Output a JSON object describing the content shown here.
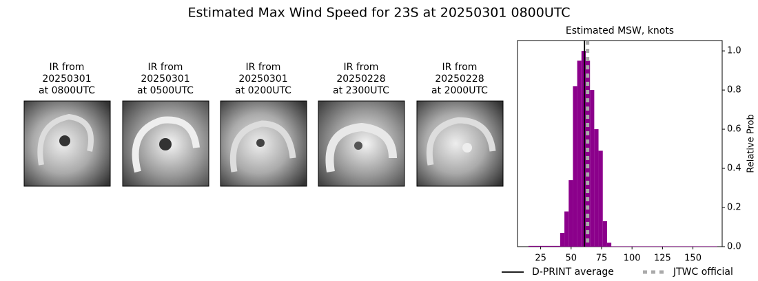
{
  "title": "Estimated Max Wind Speed for 23S at 20250301 0800UTC",
  "panels": [
    {
      "lines": [
        "IR from",
        "20250301",
        "at 0800UTC"
      ]
    },
    {
      "lines": [
        "IR from",
        "20250301",
        "at 0500UTC"
      ]
    },
    {
      "lines": [
        "IR from",
        "20250301",
        "at 0200UTC"
      ]
    },
    {
      "lines": [
        "IR from",
        "20250228",
        "at 2300UTC"
      ]
    },
    {
      "lines": [
        "IR from",
        "20250228",
        "at 2000UTC"
      ]
    }
  ],
  "chart_data": {
    "type": "histogram",
    "title": "Estimated MSW, knots",
    "ylabel": "Relative Prob",
    "bins": [
      15,
      41,
      44.5,
      48,
      51.5,
      55,
      58.5,
      62,
      65.5,
      69,
      72.5,
      76,
      79.5,
      83,
      170
    ],
    "counts": [
      0.004,
      0.07,
      0.18,
      0.34,
      0.82,
      0.95,
      1.0,
      0.95,
      0.8,
      0.6,
      0.49,
      0.13,
      0.02,
      0.002
    ],
    "color": "#8b008b",
    "xlim": [
      6,
      174
    ],
    "xticks": [
      25,
      50,
      75,
      100,
      125,
      150
    ],
    "ylim": [
      0,
      1.053
    ],
    "yticks": [
      {
        "value": 0,
        "label": "0.0"
      },
      {
        "value": 0.2,
        "label": "0.2"
      },
      {
        "value": 0.4,
        "label": "0.4"
      },
      {
        "value": 0.6,
        "label": "0.6"
      },
      {
        "value": 0.8,
        "label": "0.8"
      },
      {
        "value": 1.0,
        "label": "1.0"
      }
    ],
    "lines": [
      {
        "name": "D-PRINT average",
        "value": 61,
        "color": "#000000",
        "style": "solid"
      },
      {
        "name": "JTWC official",
        "value": 63.5,
        "color": "#aaaaaa",
        "style": "dotted"
      }
    ],
    "legend": "bottom"
  }
}
